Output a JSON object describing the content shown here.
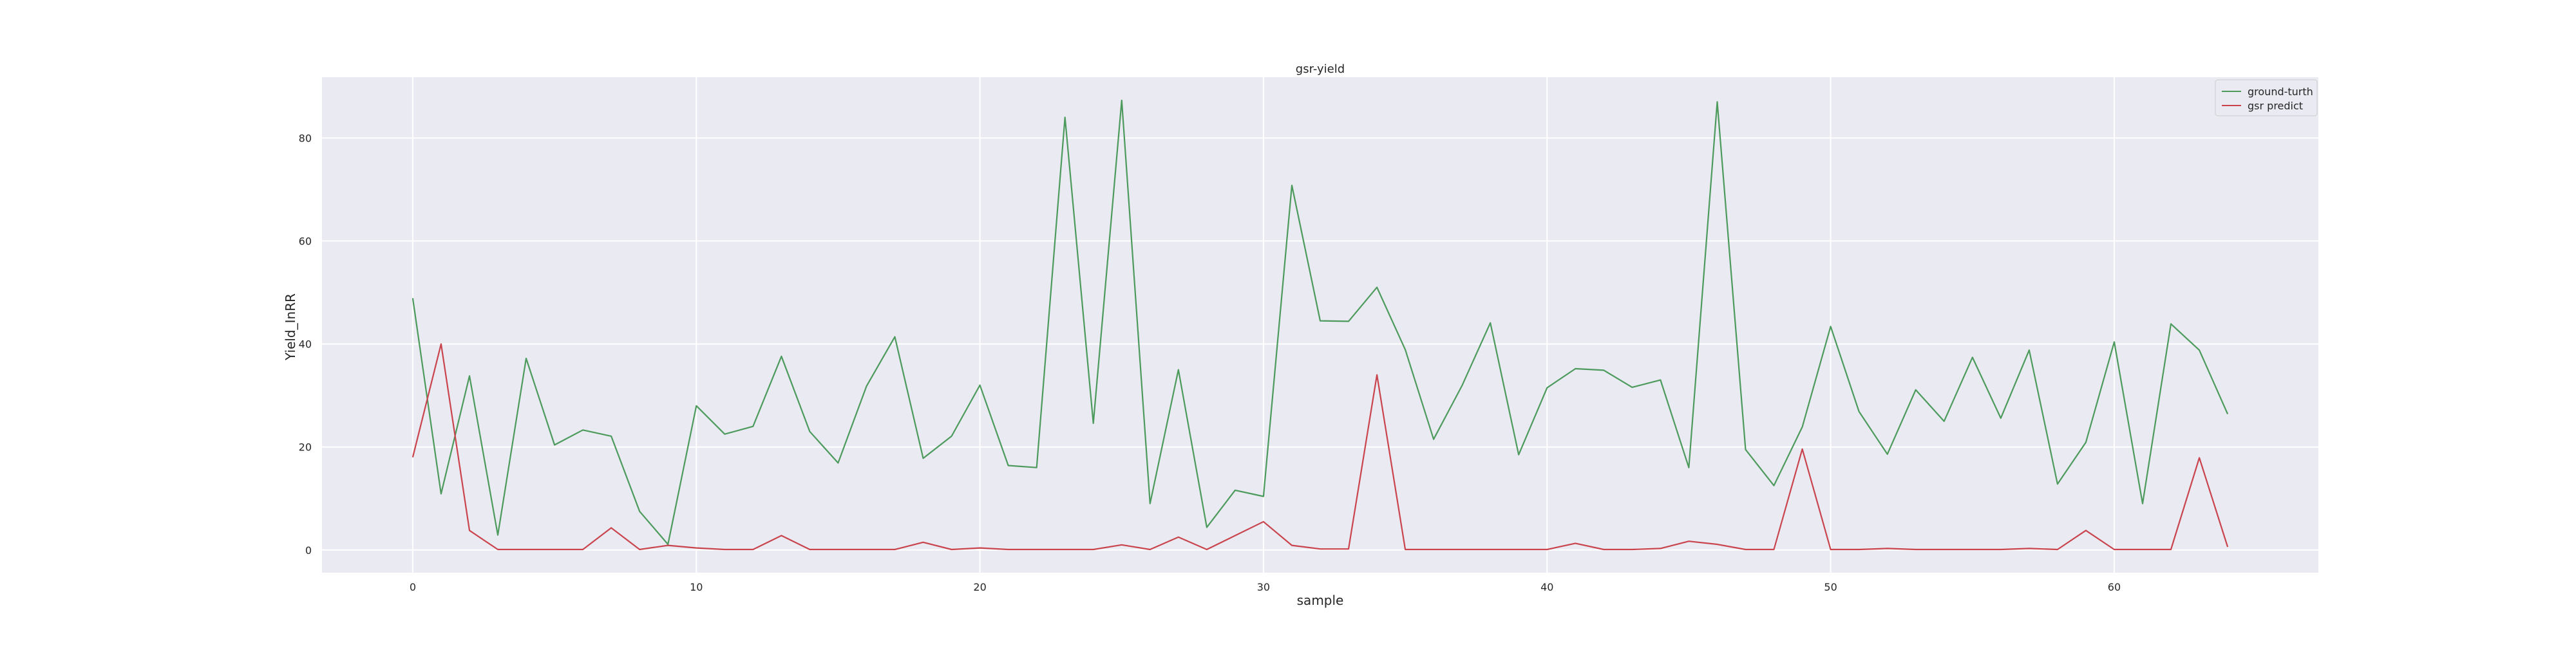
{
  "chart_data": {
    "type": "line",
    "title": "gsr-yield",
    "xlabel": "sample",
    "ylabel": "Yield_InRR",
    "xlim": [
      -3.2,
      67.2
    ],
    "ylim": [
      -4.4,
      91.8
    ],
    "xticks": [
      0,
      10,
      20,
      30,
      40,
      50,
      60
    ],
    "yticks": [
      0,
      20,
      40,
      60,
      80
    ],
    "grid": true,
    "legend_position": "top-right",
    "x": [
      0,
      1,
      2,
      3,
      4,
      5,
      6,
      7,
      8,
      9,
      10,
      11,
      12,
      13,
      14,
      15,
      16,
      17,
      18,
      19,
      20,
      21,
      22,
      23,
      24,
      25,
      26,
      27,
      28,
      29,
      30,
      31,
      32,
      33,
      34,
      35,
      36,
      37,
      38,
      39,
      40,
      41,
      42,
      43,
      44,
      45,
      46,
      47,
      48,
      49,
      50,
      51,
      52,
      53,
      54,
      55,
      56,
      57,
      58,
      59,
      60,
      61,
      62,
      63,
      64
    ],
    "series": [
      {
        "name": "ground-turth",
        "color": "#4c9a5c",
        "values": [
          48.9,
          10.9,
          33.8,
          2.9,
          37.2,
          20.4,
          23.3,
          22.1,
          7.5,
          1.1,
          28.0,
          22.5,
          24.0,
          37.6,
          23.0,
          16.9,
          31.8,
          41.4,
          17.8,
          22.1,
          32.0,
          16.4,
          16.0,
          84.0,
          24.6,
          87.3,
          9.0,
          35.0,
          4.4,
          11.6,
          10.4,
          70.8,
          44.5,
          44.4,
          51.0,
          38.9,
          21.5,
          31.9,
          44.1,
          18.5,
          31.5,
          35.2,
          34.9,
          31.6,
          33.0,
          16.0,
          87.0,
          19.5,
          12.5,
          23.9,
          43.4,
          26.9,
          18.6,
          31.1,
          25.0,
          37.4,
          25.6,
          38.8,
          12.8,
          20.9,
          40.4,
          9.0,
          43.9,
          38.8,
          26.4
        ]
      },
      {
        "name": "gsr predict",
        "color": "#c9444d",
        "values": [
          18.0,
          40.0,
          3.8,
          0.1,
          0.1,
          0.1,
          0.1,
          4.3,
          0.1,
          0.9,
          0.4,
          0.1,
          0.1,
          2.8,
          0.1,
          0.1,
          0.1,
          0.1,
          1.5,
          0.1,
          0.4,
          0.1,
          0.1,
          0.1,
          0.1,
          1.0,
          0.1,
          2.5,
          0.1,
          2.8,
          5.5,
          0.9,
          0.2,
          0.2,
          34.0,
          0.1,
          0.1,
          0.1,
          0.1,
          0.1,
          0.1,
          1.3,
          0.1,
          0.1,
          0.3,
          1.7,
          1.1,
          0.1,
          0.1,
          19.6,
          0.1,
          0.1,
          0.3,
          0.1,
          0.1,
          0.1,
          0.1,
          0.3,
          0.1,
          3.8,
          0.1,
          0.1,
          0.1,
          17.9,
          0.6
        ]
      }
    ]
  }
}
